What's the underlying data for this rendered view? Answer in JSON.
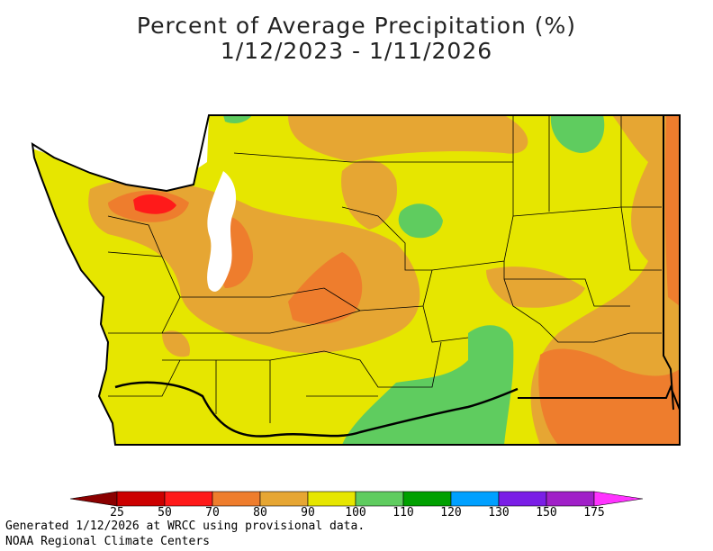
{
  "title_line1": "Percent of Average Precipitation (%)",
  "title_line2": "1/12/2023 - 1/11/2026",
  "legend": {
    "ticks": [
      "25",
      "50",
      "70",
      "80",
      "90",
      "100",
      "110",
      "120",
      "130",
      "150",
      "175"
    ],
    "colors": {
      "lt25": "#8b0000",
      "25_50": "#cc0000",
      "50_70": "#ff1a1a",
      "70_80": "#ee7d2d",
      "80_90": "#e6a633",
      "90_100": "#e6e600",
      "100_110": "#5fcc5f",
      "110_120": "#00a000",
      "120_130": "#00a0ff",
      "130_150": "#7a1ee6",
      "150_175": "#a020c8",
      "gt175": "#ff33ff"
    }
  },
  "footer": {
    "line1": "Generated 1/12/2026 at WRCC using provisional data.",
    "line2": "NOAA Regional Climate Centers"
  }
}
